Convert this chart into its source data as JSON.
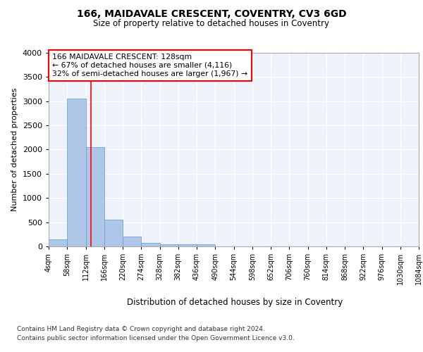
{
  "title1": "166, MAIDAVALE CRESCENT, COVENTRY, CV3 6GD",
  "title2": "Size of property relative to detached houses in Coventry",
  "xlabel": "Distribution of detached houses by size in Coventry",
  "ylabel": "Number of detached properties",
  "bin_edges": [
    4,
    58,
    112,
    166,
    220,
    274,
    328,
    382,
    436,
    490,
    544,
    598,
    652,
    706,
    760,
    814,
    868,
    922,
    976,
    1030,
    1084
  ],
  "bar_heights": [
    150,
    3050,
    2050,
    550,
    200,
    75,
    50,
    50,
    50,
    0,
    0,
    0,
    0,
    0,
    0,
    0,
    0,
    0,
    0,
    0
  ],
  "bar_color": "#aec7e8",
  "bar_edge_color": "#5b9bd5",
  "red_line_x": 128,
  "ylim": [
    0,
    4000
  ],
  "yticks": [
    0,
    500,
    1000,
    1500,
    2000,
    2500,
    3000,
    3500,
    4000
  ],
  "annotation_lines": [
    "166 MAIDAVALE CRESCENT: 128sqm",
    "← 67% of detached houses are smaller (4,116)",
    "32% of semi-detached houses are larger (1,967) →"
  ],
  "footnote1": "Contains HM Land Registry data © Crown copyright and database right 2024.",
  "footnote2": "Contains public sector information licensed under the Open Government Licence v3.0.",
  "background_color": "#eef2fb",
  "grid_color": "#ffffff",
  "tick_labels": [
    "4sqm",
    "58sqm",
    "112sqm",
    "166sqm",
    "220sqm",
    "274sqm",
    "328sqm",
    "382sqm",
    "436sqm",
    "490sqm",
    "544sqm",
    "598sqm",
    "652sqm",
    "706sqm",
    "760sqm",
    "814sqm",
    "868sqm",
    "922sqm",
    "976sqm",
    "1030sqm",
    "1084sqm"
  ]
}
